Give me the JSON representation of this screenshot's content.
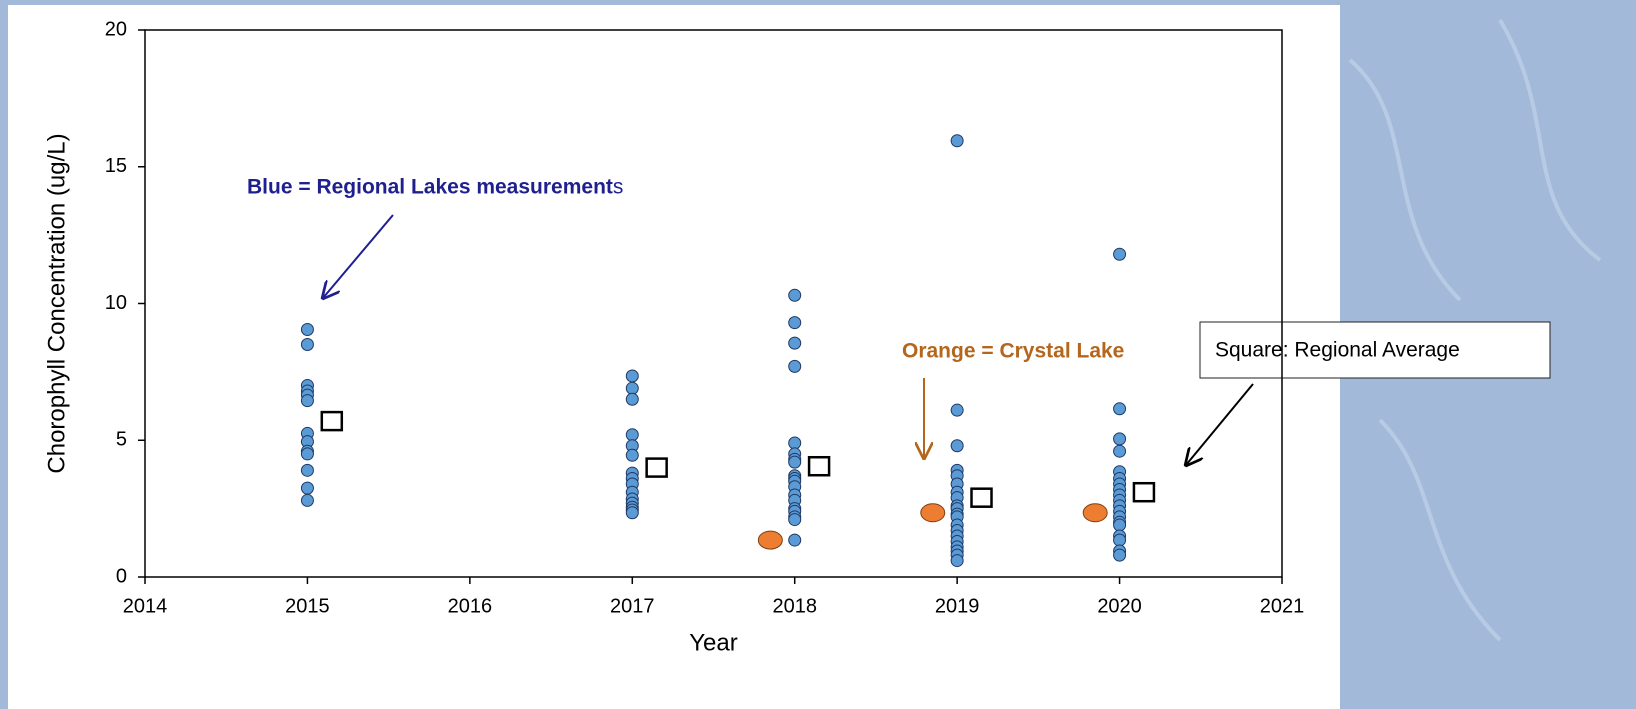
{
  "chart_data": {
    "type": "scatter",
    "xlabel": "Year",
    "ylabel": "Chorophyll Concentration (ug/L)",
    "xlim": [
      2014,
      2021
    ],
    "xticks": [
      2014,
      2015,
      2016,
      2017,
      2018,
      2019,
      2020,
      2021
    ],
    "ylim": [
      0,
      20
    ],
    "yticks": [
      0,
      5,
      10,
      15,
      20
    ],
    "series": [
      {
        "marker": "circle",
        "color": "#5b9bd5",
        "edgecolor": "#1f3864",
        "x": [
          2015,
          2015,
          2015,
          2015,
          2015,
          2015,
          2015,
          2015,
          2015,
          2015,
          2015,
          2015,
          2015,
          2017,
          2017,
          2017,
          2017,
          2017,
          2017,
          2017,
          2017,
          2017,
          2017,
          2017,
          2017,
          2017,
          2017,
          2017,
          2018,
          2018,
          2018,
          2018,
          2018,
          2018,
          2018,
          2018,
          2018,
          2018,
          2018,
          2018,
          2018,
          2018,
          2018,
          2018,
          2018,
          2018,
          2018,
          2019,
          2019,
          2019,
          2019,
          2019,
          2019,
          2019,
          2019,
          2019,
          2019,
          2019,
          2019,
          2019,
          2019,
          2019,
          2019,
          2019,
          2019,
          2019,
          2019,
          2020,
          2020,
          2020,
          2020,
          2020,
          2020,
          2020,
          2020,
          2020,
          2020,
          2020,
          2020,
          2020,
          2020,
          2020,
          2020,
          2020,
          2020,
          2020
        ],
        "values": [
          9.05,
          8.5,
          7.0,
          6.8,
          6.65,
          6.45,
          5.25,
          4.95,
          4.6,
          4.5,
          3.9,
          3.25,
          2.8,
          7.35,
          6.9,
          6.5,
          5.2,
          4.8,
          4.45,
          3.8,
          3.6,
          3.4,
          3.1,
          2.85,
          2.7,
          2.55,
          2.45,
          2.35,
          10.3,
          9.3,
          8.55,
          7.7,
          4.9,
          4.5,
          4.3,
          4.2,
          3.7,
          3.6,
          3.5,
          3.3,
          3.0,
          2.8,
          2.5,
          2.4,
          2.2,
          2.1,
          1.35,
          15.95,
          6.1,
          4.8,
          3.9,
          3.7,
          3.4,
          3.1,
          2.9,
          2.6,
          2.5,
          2.3,
          2.2,
          1.9,
          1.7,
          1.5,
          1.3,
          1.1,
          0.95,
          0.8,
          0.6,
          11.8,
          6.15,
          5.05,
          4.6,
          3.85,
          3.6,
          3.4,
          3.2,
          3.0,
          2.8,
          2.6,
          2.4,
          2.2,
          2.0,
          1.9,
          1.5,
          1.35,
          0.95,
          0.8
        ]
      },
      {
        "marker": "ellipse",
        "color": "#ed7d31",
        "edgecolor": "#7f3f10",
        "x": [
          2017.85,
          2018.85,
          2019.85
        ],
        "values": [
          1.35,
          2.35,
          2.35
        ]
      },
      {
        "marker": "square",
        "color": "#ffffff",
        "edgecolor": "#000000",
        "x": [
          2015.15,
          2017.15,
          2018.15,
          2019.15,
          2020.15
        ],
        "values": [
          5.7,
          4.0,
          4.05,
          2.9,
          3.1
        ]
      }
    ],
    "annotations": [
      {
        "text": "Blue = Regional Lakes measurement",
        "color": "#1f1f8f",
        "bold": true
      },
      {
        "text": "s",
        "color": "#1f1f8f",
        "bold": false
      },
      {
        "text": "Orange = Crystal Lake",
        "color": "#b4661c",
        "bold": true
      },
      {
        "text": "Square: Regional Average",
        "color": "#000000",
        "bold": false
      }
    ]
  }
}
